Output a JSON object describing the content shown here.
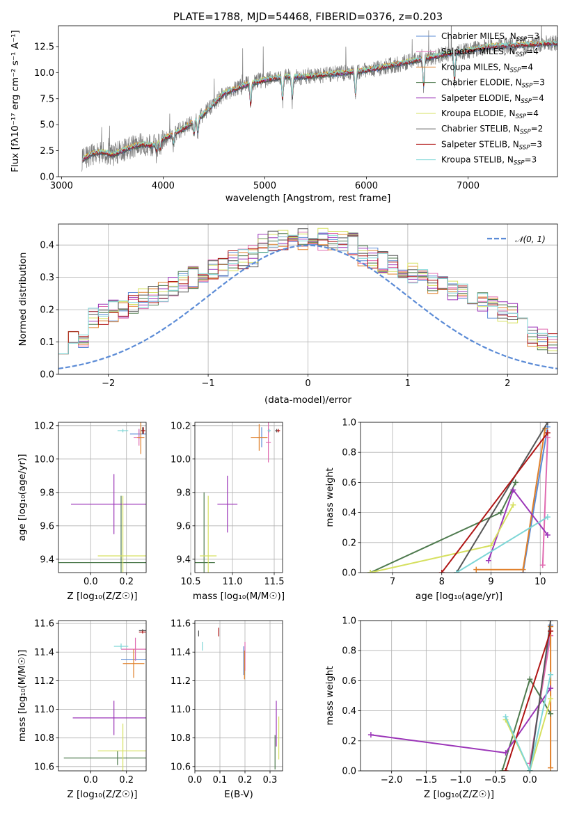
{
  "colors": {
    "Chabrier MILES": "#5b8bd6",
    "Salpeter MILES": "#e06ab0",
    "Kroupa MILES": "#e0802a",
    "Chabrier ELODIE": "#4e7a4e",
    "Salpeter ELODIE": "#9b35b8",
    "Kroupa ELODIE": "#d6e060",
    "Chabrier STELIB": "#555555",
    "Salpeter STELIB": "#b01515",
    "Kroupa STELIB": "#7dd6d6",
    "data": "#7a7a7a",
    "gauss": "#5b8bd6"
  },
  "chart_data": [
    {
      "id": "spectrum",
      "type": "line",
      "title": "PLATE=1788, MJD=54468, FIBERID=0376, z=0.203",
      "xlabel": "wavelength [Angstrom, rest frame]",
      "ylabel": "Flux [fλ10⁻¹⁷ erg cm⁻² s⁻¹ A⁻¹]",
      "xlim": [
        2970,
        7880
      ],
      "ylim": [
        0,
        14.5
      ],
      "xticks": [
        "3000",
        "4000",
        "5000",
        "6000",
        "7000"
      ],
      "yticks": [
        "0.0",
        "2.5",
        "5.0",
        "7.5",
        "10.0",
        "12.5"
      ],
      "legend_position": "right",
      "series": [
        {
          "name": "Chabrier MILES, N_SSP=3"
        },
        {
          "name": "Salpeter MILES, N_SSP=4"
        },
        {
          "name": "Kroupa MILES, N_SSP=4"
        },
        {
          "name": "Chabrier ELODIE, N_SSP=3"
        },
        {
          "name": "Salpeter ELODIE, N_SSP=4"
        },
        {
          "name": "Kroupa ELODIE, N_SSP=4"
        },
        {
          "name": "Chabrier STELIB, N_SSP=2"
        },
        {
          "name": "Salpeter STELIB, N_SSP=3"
        },
        {
          "name": "Kroupa STELIB, N_SSP=3"
        }
      ],
      "continuum": {
        "x": [
          3200,
          3300,
          3400,
          3500,
          3600,
          3700,
          3800,
          3900,
          4000,
          4200,
          4400,
          4600,
          4800,
          5000,
          5200,
          5400,
          5600,
          5800,
          6000,
          6200,
          6400,
          6600,
          6800,
          7000,
          7200,
          7400,
          7600,
          7800
        ],
        "y": [
          1.6,
          2.2,
          2.4,
          2.1,
          2.5,
          2.9,
          3.1,
          3.0,
          3.6,
          4.6,
          6.0,
          8.0,
          8.8,
          9.3,
          9.6,
          9.6,
          9.8,
          10.0,
          10.2,
          10.6,
          11.0,
          11.4,
          11.8,
          12.1,
          12.5,
          12.6,
          12.7,
          12.8
        ]
      }
    },
    {
      "id": "residuals",
      "type": "line",
      "xlabel": "(data-model)/error",
      "ylabel": "Normed distribution",
      "xlim": [
        -2.5,
        2.5
      ],
      "ylim": [
        0,
        0.465
      ],
      "xticks": [
        "−2",
        "−1",
        "0",
        "1",
        "2"
      ],
      "yticks": [
        "0.0",
        "0.1",
        "0.2",
        "0.3",
        "0.4"
      ],
      "legend": "𝒩(0, 1)",
      "legend_position": "top-right",
      "grid": true,
      "gaussian": {
        "mean": 0,
        "sigma": 1
      }
    },
    {
      "id": "age-vs-Z",
      "type": "scatter",
      "xlabel": "Z [log₁₀(Z/Z☉)]",
      "ylabel": "age  [log₁₀(age/yr)]",
      "xlim": [
        -0.18,
        0.31
      ],
      "ylim": [
        9.32,
        10.22
      ],
      "xticks": [
        "0.0",
        "0.2"
      ],
      "yticks": [
        "9.4",
        "9.6",
        "9.8",
        "10.0",
        "10.2"
      ],
      "grid": true,
      "points": [
        {
          "s": "Chabrier MILES",
          "x": 0.27,
          "y": 10.15,
          "xe": 0.05,
          "ye": 0.03
        },
        {
          "s": "Salpeter MILES",
          "x": 0.27,
          "y": 10.13,
          "xe": 0.03,
          "ye": 0.05
        },
        {
          "s": "Kroupa MILES",
          "x": 0.28,
          "y": 10.13,
          "xe": 0.02,
          "ye": 0.1
        },
        {
          "s": "Chabrier ELODIE",
          "x": 0.17,
          "y": 9.38,
          "xe": 0.35,
          "ye": 0.4
        },
        {
          "s": "Salpeter ELODIE",
          "x": 0.13,
          "y": 9.73,
          "xe": 0.24,
          "ye": 0.18
        },
        {
          "s": "Kroupa ELODIE",
          "x": 0.18,
          "y": 9.42,
          "xe": 0.14,
          "ye": 0.36
        },
        {
          "s": "Chabrier STELIB",
          "x": 0.29,
          "y": 10.17,
          "xe": 0.01,
          "ye": 0.02
        },
        {
          "s": "Salpeter STELIB",
          "x": 0.295,
          "y": 10.17,
          "xe": 0.01,
          "ye": 0.02
        },
        {
          "s": "Kroupa STELIB",
          "x": 0.18,
          "y": 10.17,
          "xe": 0.03,
          "ye": 0.01
        }
      ]
    },
    {
      "id": "age-vs-mass",
      "type": "scatter",
      "xlabel": "mass [log₁₀(M/M☉)]",
      "ylabel": "",
      "xlim": [
        10.55,
        11.6
      ],
      "ylim": [
        9.32,
        10.22
      ],
      "xticks": [
        "10.5",
        "11.0",
        "11.5"
      ],
      "yticks": [
        "9.4",
        "9.6",
        "9.8",
        "10.0",
        "10.2"
      ],
      "grid": true,
      "points": [
        {
          "s": "Chabrier MILES",
          "x": 11.35,
          "y": 10.13,
          "xe": 0.06,
          "ye": 0.06
        },
        {
          "s": "Salpeter MILES",
          "x": 11.43,
          "y": 10.1,
          "xe": 0.03,
          "ye": 0.12
        },
        {
          "s": "Kroupa MILES",
          "x": 11.32,
          "y": 10.13,
          "xe": 0.1,
          "ye": 0.08
        },
        {
          "s": "Chabrier ELODIE",
          "x": 10.66,
          "y": 9.38,
          "xe": 0.13,
          "ye": 0.42
        },
        {
          "s": "Salpeter ELODIE",
          "x": 10.94,
          "y": 9.73,
          "xe": 0.12,
          "ye": 0.17
        },
        {
          "s": "Kroupa ELODIE",
          "x": 10.71,
          "y": 9.42,
          "xe": 0.1,
          "ye": 0.36
        },
        {
          "s": "Chabrier STELIB",
          "x": 11.53,
          "y": 10.17,
          "xe": 0.02,
          "ye": 0.01
        },
        {
          "s": "Salpeter STELIB",
          "x": 11.55,
          "y": 10.17,
          "xe": 0.02,
          "ye": 0.01
        },
        {
          "s": "Kroupa STELIB",
          "x": 11.44,
          "y": 10.17,
          "xe": 0.02,
          "ye": 0.01
        }
      ]
    },
    {
      "id": "weight-vs-age",
      "type": "line",
      "xlabel": "age  [log₁₀(age/yr)]",
      "ylabel": "mass weight",
      "xlim": [
        6.35,
        10.35
      ],
      "ylim": [
        0,
        1
      ],
      "xticks": [
        "7",
        "8",
        "9",
        "10"
      ],
      "yticks": [
        "0.0",
        "0.2",
        "0.4",
        "0.6",
        "0.8",
        "1.0"
      ],
      "grid": true,
      "series": [
        {
          "s": "Chabrier MILES",
          "x": [
            9.65,
            10.15
          ],
          "y": [
            0.0,
            0.97
          ]
        },
        {
          "s": "Salpeter MILES",
          "x": [
            10.05,
            10.15
          ],
          "y": [
            0.05,
            0.9
          ]
        },
        {
          "s": "Kroupa MILES",
          "x": [
            8.7,
            9.65,
            10.1
          ],
          "y": [
            0.02,
            0.02,
            0.96
          ]
        },
        {
          "s": "Chabrier ELODIE",
          "x": [
            6.55,
            9.2,
            9.5
          ],
          "y": [
            0.0,
            0.4,
            0.6
          ]
        },
        {
          "s": "Salpeter ELODIE",
          "x": [
            8.95,
            9.45,
            10.15
          ],
          "y": [
            0.08,
            0.55,
            0.25
          ]
        },
        {
          "s": "Kroupa ELODIE",
          "x": [
            6.55,
            9.0,
            9.45
          ],
          "y": [
            0.0,
            0.18,
            0.45
          ]
        },
        {
          "s": "Chabrier STELIB",
          "x": [
            8.3,
            10.15
          ],
          "y": [
            0.0,
            1.0
          ]
        },
        {
          "s": "Salpeter STELIB",
          "x": [
            8.0,
            10.15
          ],
          "y": [
            0.0,
            0.93
          ]
        },
        {
          "s": "Kroupa STELIB",
          "x": [
            8.3,
            10.15
          ],
          "y": [
            0.0,
            0.37
          ]
        }
      ]
    },
    {
      "id": "mass-vs-Z",
      "type": "scatter",
      "xlabel": "Z [log₁₀(Z/Z☉)]",
      "ylabel": "mass [log₁₀(M/M☉)]",
      "xlim": [
        -0.18,
        0.31
      ],
      "ylim": [
        10.57,
        11.62
      ],
      "xticks": [
        "0.0",
        "0.2"
      ],
      "yticks": [
        "10.6",
        "10.8",
        "11.0",
        "11.2",
        "11.4",
        "11.6"
      ],
      "grid": true,
      "points": [
        {
          "s": "Chabrier MILES",
          "x": 0.25,
          "y": 11.35,
          "xe": 0.08,
          "ye": 0.01
        },
        {
          "s": "Salpeter MILES",
          "x": 0.25,
          "y": 11.42,
          "xe": 0.08,
          "ye": 0.08
        },
        {
          "s": "Kroupa MILES",
          "x": 0.24,
          "y": 11.32,
          "xe": 0.06,
          "ye": 0.1
        },
        {
          "s": "Chabrier ELODIE",
          "x": 0.15,
          "y": 10.66,
          "xe": 0.3,
          "ye": 0.05
        },
        {
          "s": "Salpeter ELODIE",
          "x": 0.13,
          "y": 10.94,
          "xe": 0.23,
          "ye": 0.12
        },
        {
          "s": "Kroupa ELODIE",
          "x": 0.18,
          "y": 10.71,
          "xe": 0.14,
          "ye": 0.19
        },
        {
          "s": "Chabrier STELIB",
          "x": 0.29,
          "y": 11.55,
          "xe": 0.02,
          "ye": 0.01
        },
        {
          "s": "Salpeter STELIB",
          "x": 0.29,
          "y": 11.54,
          "xe": 0.02,
          "ye": 0.01
        },
        {
          "s": "Kroupa STELIB",
          "x": 0.17,
          "y": 11.44,
          "xe": 0.04,
          "ye": 0.02
        }
      ]
    },
    {
      "id": "mass-vs-EBV",
      "type": "scatter",
      "xlabel": "E(B-V)",
      "ylabel": "",
      "xlim": [
        0.0,
        0.35
      ],
      "ylim": [
        10.57,
        11.62
      ],
      "xticks": [
        "0.0",
        "0.1",
        "0.2",
        "0.3"
      ],
      "yticks": [
        "10.6",
        "10.8",
        "11.0",
        "11.2",
        "11.4",
        "11.6"
      ],
      "grid": true,
      "points": [
        {
          "s": "Chabrier MILES",
          "x": 0.195,
          "y": 11.34,
          "xe": 0.0,
          "ye": 0.1
        },
        {
          "s": "Salpeter MILES",
          "x": 0.2,
          "y": 11.37,
          "xe": 0.0,
          "ye": 0.1
        },
        {
          "s": "Kroupa MILES",
          "x": 0.198,
          "y": 11.31,
          "xe": 0.0,
          "ye": 0.1
        },
        {
          "s": "Chabrier ELODIE",
          "x": 0.32,
          "y": 10.7,
          "xe": 0.0,
          "ye": 0.12
        },
        {
          "s": "Salpeter ELODIE",
          "x": 0.325,
          "y": 10.9,
          "xe": 0.0,
          "ye": 0.16
        },
        {
          "s": "Kroupa ELODIE",
          "x": 0.335,
          "y": 10.8,
          "xe": 0.0,
          "ye": 0.15
        },
        {
          "s": "Chabrier STELIB",
          "x": 0.015,
          "y": 11.53,
          "xe": 0.0,
          "ye": 0.02
        },
        {
          "s": "Salpeter STELIB",
          "x": 0.095,
          "y": 11.54,
          "xe": 0.0,
          "ye": 0.03
        },
        {
          "s": "Kroupa STELIB",
          "x": 0.03,
          "y": 11.44,
          "xe": 0.0,
          "ye": 0.03
        }
      ]
    },
    {
      "id": "weight-vs-Z",
      "type": "line",
      "xlabel": "Z [log₁₀(Z/Z☉)]",
      "ylabel": "mass weight",
      "xlim": [
        -2.45,
        0.4
      ],
      "ylim": [
        0,
        1
      ],
      "xticks": [
        "−2.0",
        "−1.5",
        "−1.0",
        "−0.5",
        "0.0"
      ],
      "yticks": [
        "0.0",
        "0.2",
        "0.4",
        "0.6",
        "0.8",
        "1.0"
      ],
      "grid": true,
      "series": [
        {
          "s": "Chabrier MILES",
          "x": [
            0.0,
            0.3
          ],
          "y": [
            0.0,
            0.97
          ]
        },
        {
          "s": "Salpeter MILES",
          "x": [
            0.0,
            0.3
          ],
          "y": [
            0.05,
            0.9
          ]
        },
        {
          "s": "Kroupa MILES",
          "x": [
            0.3,
            0.3
          ],
          "y": [
            0.02,
            0.96
          ]
        },
        {
          "s": "Chabrier ELODIE",
          "x": [
            -0.4,
            0.0,
            0.3
          ],
          "y": [
            0.0,
            0.61,
            0.38
          ]
        },
        {
          "s": "Salpeter ELODIE",
          "x": [
            -2.3,
            -0.35,
            0.3
          ],
          "y": [
            0.24,
            0.12,
            0.55
          ]
        },
        {
          "s": "Kroupa ELODIE",
          "x": [
            -0.35,
            0.0,
            0.3
          ],
          "y": [
            0.34,
            0.0,
            0.48
          ]
        },
        {
          "s": "Chabrier STELIB",
          "x": [
            0.0,
            0.3
          ],
          "y": [
            0.0,
            1.0
          ]
        },
        {
          "s": "Salpeter STELIB",
          "x": [
            -0.35,
            0.3
          ],
          "y": [
            0.0,
            0.93
          ]
        },
        {
          "s": "Kroupa STELIB",
          "x": [
            -0.35,
            0.0,
            0.3
          ],
          "y": [
            0.36,
            0.0,
            0.64
          ]
        }
      ]
    }
  ]
}
